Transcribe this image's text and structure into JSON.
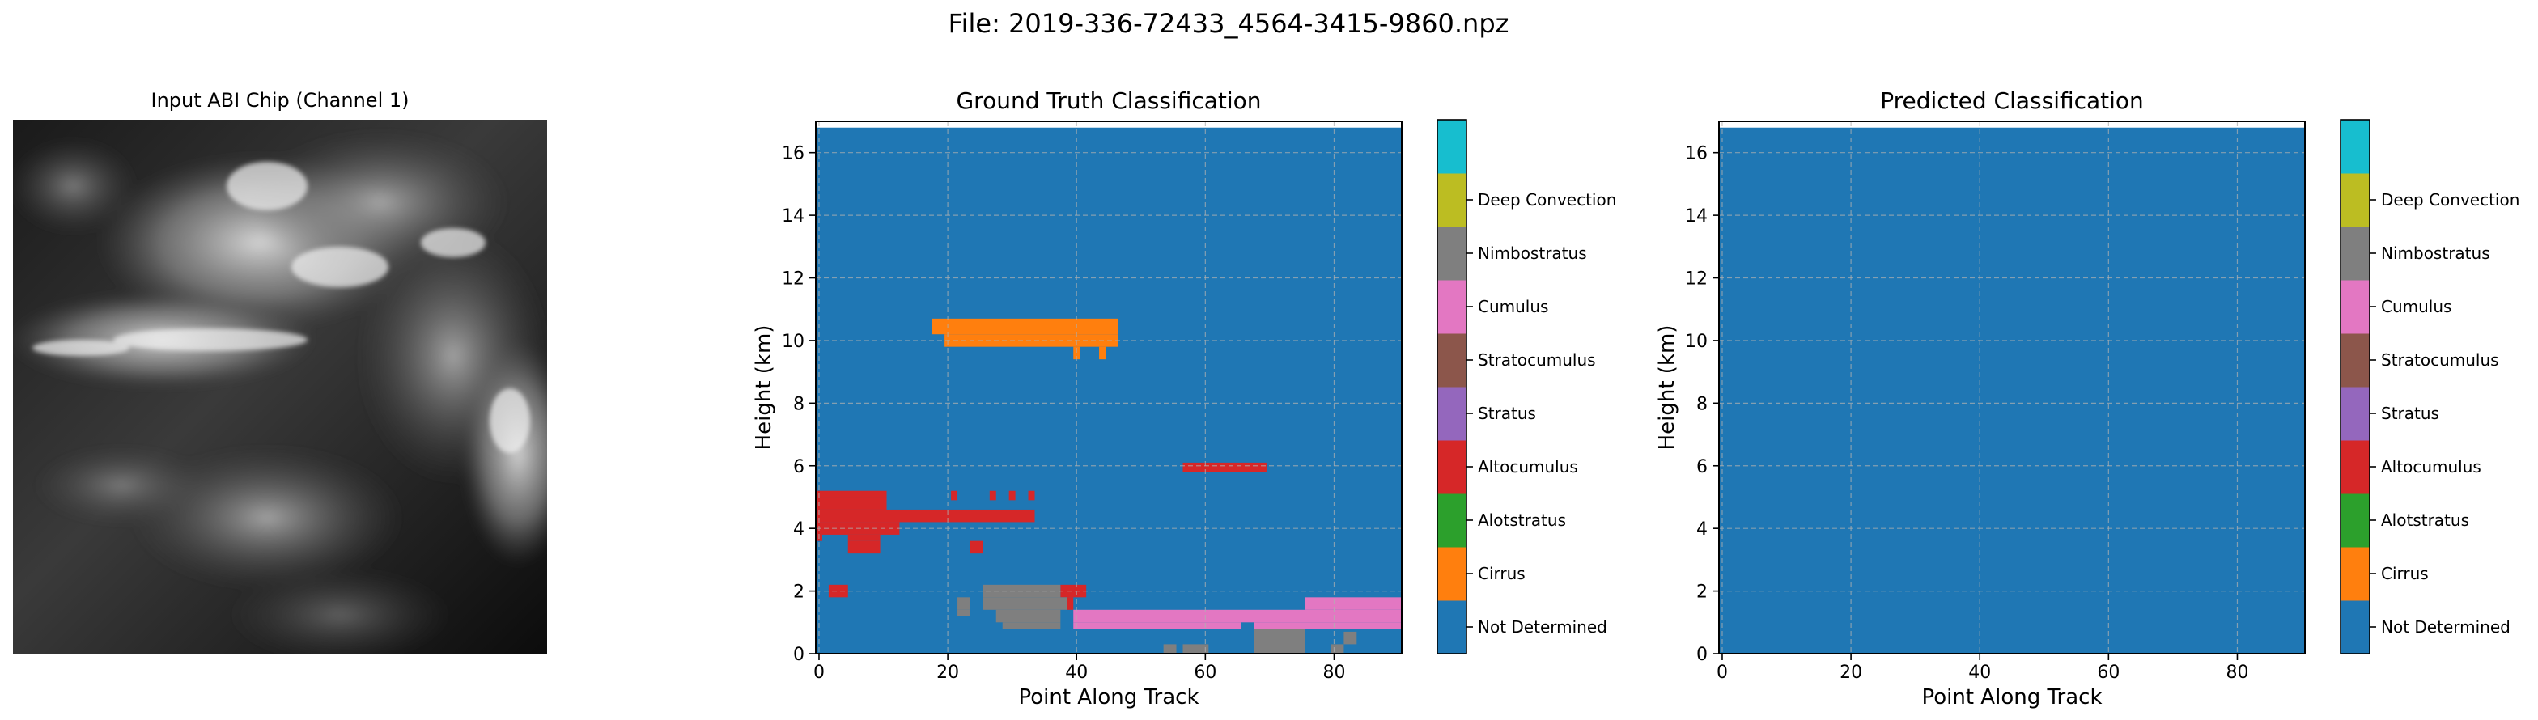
{
  "suptitle": "File: 2019-336-72433_4564-3415-9860.npz",
  "image_panel": {
    "title": "Input ABI Chip (Channel 1)"
  },
  "classes": [
    {
      "name": "Not Determined",
      "color": "#1f77b4"
    },
    {
      "name": "Cirrus",
      "color": "#ff7f0e"
    },
    {
      "name": "Alotstratus",
      "color": "#2ca02c"
    },
    {
      "name": "Altocumulus",
      "color": "#d62728"
    },
    {
      "name": "Stratus",
      "color": "#9467bd"
    },
    {
      "name": "Stratocumulus",
      "color": "#8c564b"
    },
    {
      "name": "Cumulus",
      "color": "#e377c2"
    },
    {
      "name": "Nimbostratus",
      "color": "#7f7f7f"
    },
    {
      "name": "Deep Convection",
      "color": "#bcbd22"
    },
    {
      "name": "",
      "color": "#17becf"
    }
  ],
  "chart_data": [
    {
      "type": "heatmap",
      "title": "Ground Truth Classification",
      "xlabel": "Point Along Track",
      "ylabel": "Height (km)",
      "xlim": [
        -0.5,
        90.5
      ],
      "ylim": [
        0,
        17
      ],
      "data_height_km": 16.8,
      "xticks": [
        0,
        20,
        40,
        60,
        80
      ],
      "yticks": [
        0,
        2,
        4,
        6,
        8,
        10,
        12,
        14,
        16
      ],
      "grid": true,
      "background_class": "Not Determined",
      "regions": [
        {
          "class": "Cirrus",
          "x": [
            17.5,
            46.5
          ],
          "y": [
            10.2,
            10.7
          ]
        },
        {
          "class": "Cirrus",
          "x": [
            19.5,
            46.5
          ],
          "y": [
            9.8,
            10.2
          ]
        },
        {
          "class": "Cirrus",
          "x": [
            39.5,
            40.5
          ],
          "y": [
            9.4,
            9.8
          ]
        },
        {
          "class": "Cirrus",
          "x": [
            43.5,
            44.5
          ],
          "y": [
            9.4,
            9.8
          ]
        },
        {
          "class": "Altocumulus",
          "x": [
            56.5,
            69.5
          ],
          "y": [
            5.8,
            6.1
          ]
        },
        {
          "class": "Altocumulus",
          "x": [
            -0.5,
            10.5
          ],
          "y": [
            5.0,
            5.2
          ]
        },
        {
          "class": "Altocumulus",
          "x": [
            20.5,
            21.5
          ],
          "y": [
            4.9,
            5.2
          ]
        },
        {
          "class": "Altocumulus",
          "x": [
            26.5,
            27.5
          ],
          "y": [
            4.9,
            5.2
          ]
        },
        {
          "class": "Altocumulus",
          "x": [
            29.5,
            30.5
          ],
          "y": [
            4.9,
            5.2
          ]
        },
        {
          "class": "Altocumulus",
          "x": [
            32.5,
            33.5
          ],
          "y": [
            4.9,
            5.2
          ]
        },
        {
          "class": "Altocumulus",
          "x": [
            -0.5,
            10.5
          ],
          "y": [
            4.6,
            5.0
          ]
        },
        {
          "class": "Altocumulus",
          "x": [
            -0.5,
            33.5
          ],
          "y": [
            4.2,
            4.6
          ]
        },
        {
          "class": "Altocumulus",
          "x": [
            -0.5,
            12.5
          ],
          "y": [
            3.8,
            4.2
          ]
        },
        {
          "class": "Altocumulus",
          "x": [
            -0.5,
            0.5
          ],
          "y": [
            3.6,
            3.8
          ]
        },
        {
          "class": "Altocumulus",
          "x": [
            4.5,
            9.5
          ],
          "y": [
            3.6,
            3.8
          ]
        },
        {
          "class": "Altocumulus",
          "x": [
            4.5,
            9.5
          ],
          "y": [
            3.2,
            3.6
          ]
        },
        {
          "class": "Altocumulus",
          "x": [
            23.5,
            25.5
          ],
          "y": [
            3.2,
            3.6
          ]
        },
        {
          "class": "Altocumulus",
          "x": [
            1.5,
            4.5
          ],
          "y": [
            1.8,
            2.2
          ]
        },
        {
          "class": "Altocumulus",
          "x": [
            37.5,
            41.5
          ],
          "y": [
            1.8,
            2.2
          ]
        },
        {
          "class": "Altocumulus",
          "x": [
            38.5,
            39.5
          ],
          "y": [
            1.4,
            1.8
          ]
        },
        {
          "class": "Cumulus",
          "x": [
            75.5,
            90.5
          ],
          "y": [
            1.4,
            1.8
          ]
        },
        {
          "class": "Cumulus",
          "x": [
            39.5,
            90.5
          ],
          "y": [
            1.0,
            1.4
          ]
        },
        {
          "class": "Cumulus",
          "x": [
            39.5,
            65.5
          ],
          "y": [
            0.8,
            1.0
          ]
        },
        {
          "class": "Cumulus",
          "x": [
            67.5,
            90.5
          ],
          "y": [
            0.8,
            1.0
          ]
        },
        {
          "class": "Nimbostratus",
          "x": [
            25.5,
            37.5
          ],
          "y": [
            1.8,
            2.2
          ]
        },
        {
          "class": "Nimbostratus",
          "x": [
            25.5,
            38.5
          ],
          "y": [
            1.4,
            1.8
          ]
        },
        {
          "class": "Nimbostratus",
          "x": [
            21.5,
            23.5
          ],
          "y": [
            1.4,
            1.8
          ]
        },
        {
          "class": "Nimbostratus",
          "x": [
            21.5,
            23.5
          ],
          "y": [
            1.2,
            1.4
          ]
        },
        {
          "class": "Nimbostratus",
          "x": [
            27.5,
            37.5
          ],
          "y": [
            1.0,
            1.4
          ]
        },
        {
          "class": "Nimbostratus",
          "x": [
            28.5,
            37.5
          ],
          "y": [
            0.8,
            1.0
          ]
        },
        {
          "class": "Nimbostratus",
          "x": [
            67.5,
            75.5
          ],
          "y": [
            0,
            0.8
          ]
        },
        {
          "class": "Nimbostratus",
          "x": [
            79.5,
            81.5
          ],
          "y": [
            0,
            0.3
          ]
        },
        {
          "class": "Nimbostratus",
          "x": [
            81.5,
            83.5
          ],
          "y": [
            0.3,
            0.7
          ]
        },
        {
          "class": "Nimbostratus",
          "x": [
            53.5,
            55.5
          ],
          "y": [
            0,
            0.3
          ]
        },
        {
          "class": "Nimbostratus",
          "x": [
            56.5,
            60.5
          ],
          "y": [
            0,
            0.3
          ]
        }
      ]
    },
    {
      "type": "heatmap",
      "title": "Predicted Classification",
      "xlabel": "Point Along Track",
      "ylabel": "Height (km)",
      "xlim": [
        -0.5,
        90.5
      ],
      "ylim": [
        0,
        17
      ],
      "data_height_km": 16.8,
      "xticks": [
        0,
        20,
        40,
        60,
        80
      ],
      "yticks": [
        0,
        2,
        4,
        6,
        8,
        10,
        12,
        14,
        16
      ],
      "grid": true,
      "background_class": "Not Determined",
      "regions": []
    }
  ]
}
